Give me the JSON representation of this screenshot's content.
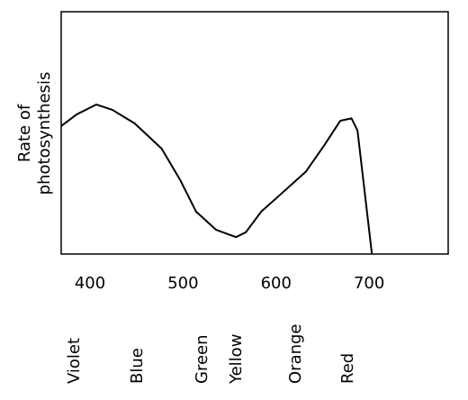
{
  "chart_data": {
    "type": "line",
    "ylabel": [
      "Rate of",
      "photosynthesis"
    ],
    "x": [
      369,
      385.5,
      406.8,
      424,
      448,
      477,
      497,
      514,
      535.5,
      557,
      567.5,
      584,
      603,
      632,
      652,
      669,
      681,
      687.5,
      703
    ],
    "series": [
      {
        "name": "Rate of photosynthesis",
        "color": "#000000",
        "values": [
          52.8,
          57.6,
          61.7,
          59.5,
          53.9,
          43.5,
          30.5,
          17.5,
          10,
          7,
          9,
          17.5,
          24,
          34,
          45,
          55,
          56,
          51,
          0
        ]
      }
    ],
    "xlim": [
      369,
      785
    ],
    "xticks": [
      400,
      500,
      600,
      700
    ],
    "ylim": [
      0,
      100
    ],
    "color_labels": [
      "Violet",
      "Blue",
      "Green",
      "Yellow",
      "Orange",
      "Red"
    ]
  }
}
